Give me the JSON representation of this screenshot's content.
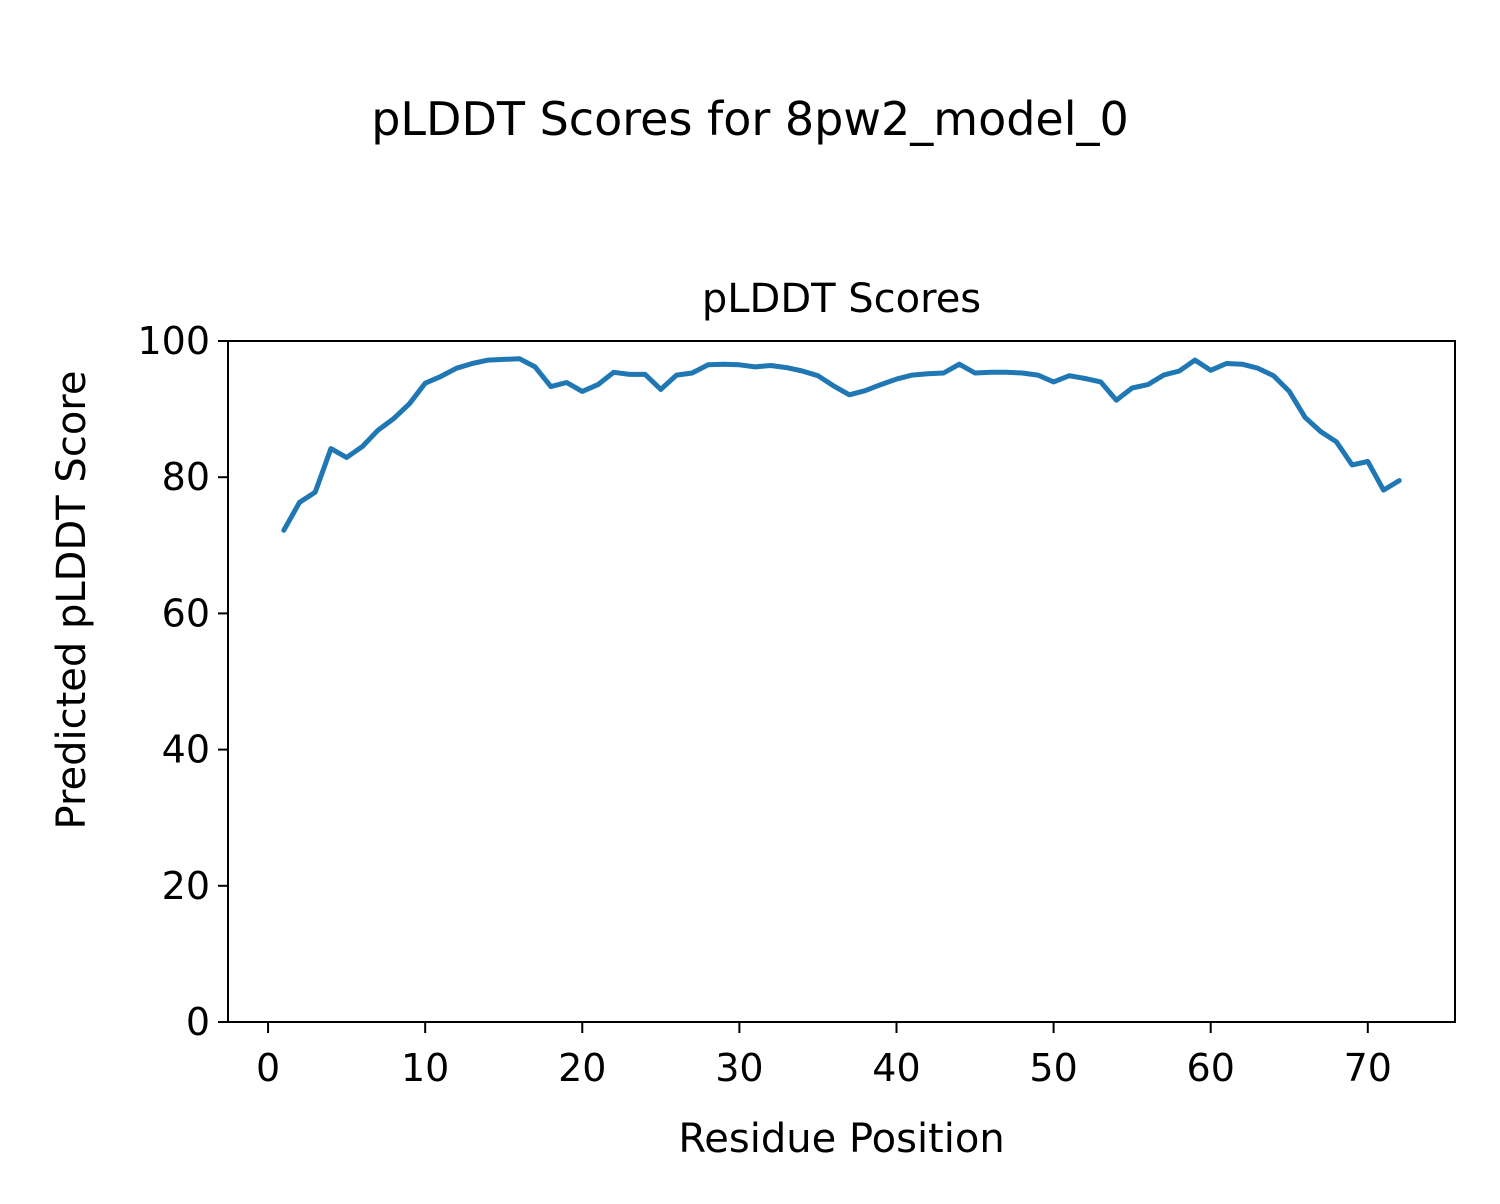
{
  "page": {
    "suptitle": "pLDDT Scores for 8pw2_model_0"
  },
  "chart_data": {
    "type": "line",
    "title": "pLDDT Scores",
    "xlabel": "Residue Position",
    "ylabel": "Predicted pLDDT Score",
    "legend": "none",
    "grid": false,
    "line_color": "#1f77b4",
    "line_width": 5,
    "xlim": [
      -2.55,
      75.55
    ],
    "ylim": [
      0,
      100
    ],
    "xticks": [
      0,
      10,
      20,
      30,
      40,
      50,
      60,
      70
    ],
    "yticks": [
      0,
      20,
      40,
      60,
      80,
      100
    ],
    "x": [
      1,
      2,
      3,
      4,
      5,
      6,
      7,
      8,
      9,
      10,
      11,
      12,
      13,
      14,
      15,
      16,
      17,
      18,
      19,
      20,
      21,
      22,
      23,
      24,
      25,
      26,
      27,
      28,
      29,
      30,
      31,
      32,
      33,
      34,
      35,
      36,
      37,
      38,
      39,
      40,
      41,
      42,
      43,
      44,
      45,
      46,
      47,
      48,
      49,
      50,
      51,
      52,
      53,
      54,
      55,
      56,
      57,
      58,
      59,
      60,
      61,
      62,
      63,
      64,
      65,
      66,
      67,
      68,
      69,
      70,
      71,
      72
    ],
    "series": [
      {
        "name": "pLDDT",
        "values": [
          72.2,
          76.3,
          77.8,
          84.2,
          82.9,
          84.5,
          86.9,
          88.6,
          90.8,
          93.8,
          94.8,
          96.0,
          96.7,
          97.2,
          97.3,
          97.4,
          96.2,
          93.3,
          93.9,
          92.6,
          93.6,
          95.4,
          95.1,
          95.1,
          92.9,
          95.0,
          95.3,
          96.5,
          96.6,
          96.5,
          96.2,
          96.4,
          96.1,
          95.6,
          94.9,
          93.4,
          92.1,
          92.7,
          93.6,
          94.4,
          95.0,
          95.2,
          95.3,
          96.6,
          95.3,
          95.4,
          95.4,
          95.3,
          95.0,
          94.0,
          94.9,
          94.5,
          94.0,
          91.3,
          93.1,
          93.6,
          95.0,
          95.6,
          97.2,
          95.7,
          96.7,
          96.6,
          96.0,
          94.9,
          92.6,
          88.8,
          86.7,
          85.2,
          81.8,
          82.3,
          78.1,
          79.5
        ]
      }
    ]
  }
}
